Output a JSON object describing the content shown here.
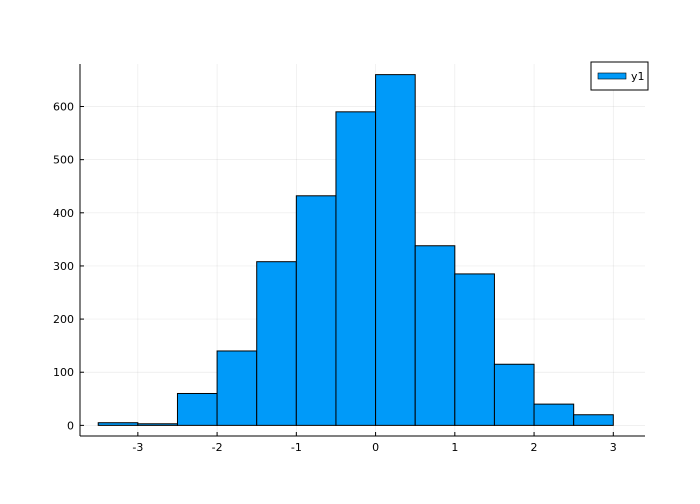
{
  "chart_data": {
    "type": "bar",
    "title": "",
    "xlabel": "",
    "ylabel": "",
    "xlim": [
      -3.73,
      3.4
    ],
    "ylim": [
      -20,
      680
    ],
    "xticks": [
      -3,
      -2,
      -1,
      0,
      1,
      2,
      3
    ],
    "xtick_labels": [
      "-3",
      "-2",
      "-1",
      "0",
      "1",
      "2",
      "3"
    ],
    "yticks": [
      0,
      100,
      200,
      300,
      400,
      500,
      600
    ],
    "ytick_labels": [
      "0",
      "100",
      "200",
      "300",
      "400",
      "500",
      "600"
    ],
    "grid": true,
    "legend": {
      "position": "top-right",
      "entries": [
        "y1"
      ]
    },
    "bar_color": "#009AF9",
    "series": [
      {
        "name": "y1",
        "bins": [
          {
            "start": -3.5,
            "end": -3.0,
            "value": 5
          },
          {
            "start": -3.0,
            "end": -2.5,
            "value": 3
          },
          {
            "start": -2.5,
            "end": -2.0,
            "value": 60
          },
          {
            "start": -2.0,
            "end": -1.5,
            "value": 140
          },
          {
            "start": -1.5,
            "end": -1.0,
            "value": 308
          },
          {
            "start": -1.0,
            "end": -0.5,
            "value": 432
          },
          {
            "start": -0.5,
            "end": 0.0,
            "value": 590
          },
          {
            "start": 0.0,
            "end": 0.5,
            "value": 660
          },
          {
            "start": 0.5,
            "end": 1.0,
            "value": 338
          },
          {
            "start": 1.0,
            "end": 1.5,
            "value": 285
          },
          {
            "start": 1.5,
            "end": 2.0,
            "value": 115
          },
          {
            "start": 2.0,
            "end": 2.5,
            "value": 40
          },
          {
            "start": 2.5,
            "end": 3.0,
            "value": 20
          }
        ]
      }
    ]
  }
}
